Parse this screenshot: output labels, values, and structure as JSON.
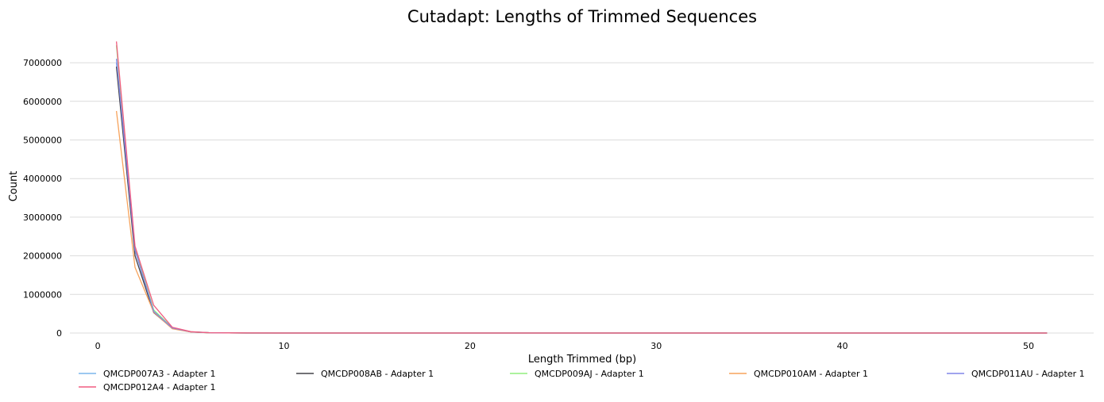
{
  "chart_data": {
    "type": "line",
    "title": "Cutadapt: Lengths of Trimmed Sequences",
    "xlabel": "Length Trimmed (bp)",
    "ylabel": "Count",
    "xlim": [
      -1.5,
      53.5
    ],
    "ylim": [
      0,
      7700000
    ],
    "xticks": [
      0,
      10,
      20,
      30,
      40,
      50
    ],
    "yticks": [
      0,
      1000000,
      2000000,
      3000000,
      4000000,
      5000000,
      6000000,
      7000000
    ],
    "grid": "horizontal",
    "legend_position": "bottom",
    "series": [
      {
        "name": "QMCDP007A3 - Adapter 1",
        "color": "#7cb5ec",
        "x": [
          1,
          2,
          3,
          4,
          5,
          6,
          7,
          8,
          10,
          15,
          20,
          30,
          40,
          51
        ],
        "y": [
          7000000,
          2150000,
          560000,
          130000,
          30000,
          8000,
          3000,
          1000,
          300,
          0,
          0,
          0,
          0,
          0
        ]
      },
      {
        "name": "QMCDP008AB - Adapter 1",
        "color": "#434348",
        "x": [
          1,
          2,
          3,
          4,
          5,
          6,
          7,
          8,
          10,
          15,
          20,
          30,
          40,
          51
        ],
        "y": [
          6900000,
          2000000,
          530000,
          120000,
          28000,
          7000,
          3000,
          1000,
          300,
          0,
          0,
          0,
          0,
          0
        ]
      },
      {
        "name": "QMCDP009AJ - Adapter 1",
        "color": "#90ed7d",
        "x": [
          1,
          2,
          3,
          4,
          5,
          6,
          7,
          8,
          10,
          15,
          20,
          30,
          40,
          51
        ],
        "y": [
          7450000,
          2200000,
          600000,
          140000,
          32000,
          8000,
          3000,
          1000,
          300,
          0,
          0,
          0,
          0,
          0
        ]
      },
      {
        "name": "QMCDP010AM - Adapter 1",
        "color": "#f7a35c",
        "x": [
          1,
          2,
          3,
          4,
          5,
          6,
          7,
          8,
          10,
          15,
          20,
          30,
          40,
          51
        ],
        "y": [
          5750000,
          1700000,
          540000,
          110000,
          27000,
          7000,
          2500,
          1000,
          300,
          0,
          0,
          0,
          0,
          0
        ]
      },
      {
        "name": "QMCDP011AU - Adapter 1",
        "color": "#8085e9",
        "x": [
          1,
          2,
          3,
          4,
          5,
          6,
          7,
          8,
          10,
          15,
          20,
          30,
          40,
          51
        ],
        "y": [
          7100000,
          2150000,
          560000,
          130000,
          30000,
          8000,
          3000,
          1000,
          300,
          0,
          0,
          0,
          0,
          0
        ]
      },
      {
        "name": "QMCDP012A4 - Adapter 1",
        "color": "#f15c80",
        "x": [
          1,
          2,
          3,
          4,
          5,
          6,
          7,
          8,
          10,
          15,
          20,
          30,
          40,
          51
        ],
        "y": [
          7550000,
          2250000,
          720000,
          150000,
          35000,
          9000,
          3500,
          1200,
          300,
          0,
          0,
          0,
          0,
          0
        ]
      }
    ]
  }
}
